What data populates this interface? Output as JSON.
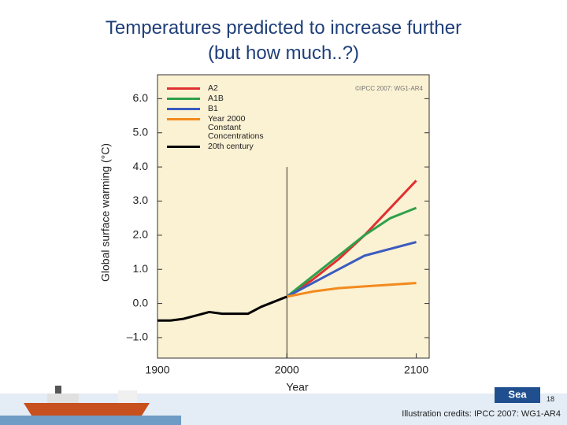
{
  "slide": {
    "title_lines": [
      "Temperatures predicted to increase further",
      "(but how much..?)"
    ],
    "page_number": "18",
    "credits": "Illustration credits: IPCC 2007: WG1-AR4"
  },
  "chart_data": {
    "type": "line",
    "source_note": "©IPCC 2007: WG1-AR4",
    "x_label": "Year",
    "y_label": "Global surface warming (°C)",
    "x": [
      1900,
      1910,
      1920,
      1930,
      1940,
      1950,
      1960,
      1970,
      1980,
      1990,
      2000,
      2020,
      2040,
      2060,
      2080,
      2100
    ],
    "series": [
      {
        "name": "A2",
        "color": "#e03030",
        "values": [
          null,
          null,
          null,
          null,
          null,
          null,
          null,
          null,
          null,
          null,
          0.2,
          0.7,
          1.3,
          2.0,
          2.8,
          3.6
        ]
      },
      {
        "name": "A1B",
        "color": "#2ea04a",
        "values": [
          null,
          null,
          null,
          null,
          null,
          null,
          null,
          null,
          null,
          null,
          0.2,
          0.8,
          1.4,
          2.0,
          2.5,
          2.8
        ]
      },
      {
        "name": "B1",
        "color": "#3b5bbf",
        "values": [
          null,
          null,
          null,
          null,
          null,
          null,
          null,
          null,
          null,
          null,
          0.2,
          0.6,
          1.0,
          1.4,
          1.6,
          1.8
        ]
      },
      {
        "name": "Year 2000 Constant Concentrations",
        "color": "#f28a1e",
        "values": [
          null,
          null,
          null,
          null,
          null,
          null,
          null,
          null,
          null,
          null,
          0.2,
          0.35,
          0.45,
          0.5,
          0.55,
          0.6
        ]
      },
      {
        "name": "20th century",
        "color": "#000000",
        "values": [
          -0.5,
          -0.5,
          -0.45,
          -0.35,
          -0.25,
          -0.3,
          -0.3,
          -0.3,
          -0.1,
          0.05,
          0.2,
          null,
          null,
          null,
          null,
          null
        ]
      }
    ],
    "xlim": [
      1900,
      2110
    ],
    "xticks": [
      1900,
      2000,
      2100
    ],
    "ylim": [
      -1.6,
      6.7
    ],
    "yticks": [
      {
        "value": -1,
        "label": "–1.0"
      },
      {
        "value": 0,
        "label": "0.0"
      },
      {
        "value": 1,
        "label": "1.0"
      },
      {
        "value": 2,
        "label": "2.0"
      },
      {
        "value": 3,
        "label": "3.0"
      },
      {
        "value": 4,
        "label": "4.0"
      },
      {
        "value": 5,
        "label": "5.0"
      },
      {
        "value": 6,
        "label": "6.0"
      }
    ],
    "legend": "upper left",
    "plot_background": "#fbf1d3"
  }
}
